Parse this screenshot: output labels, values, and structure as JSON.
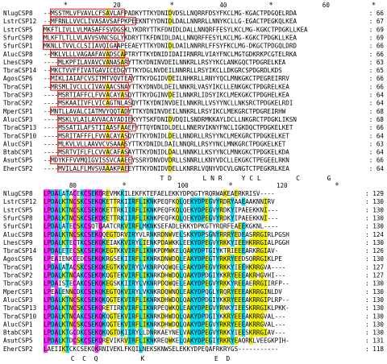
{
  "figure": {
    "blocks": [
      {
        "ruler": [
          "*",
          "20",
          "*",
          "40",
          "*",
          "60",
          "*"
        ],
        "rows": [
          {
            "name": "NlugCSP8",
            "seq": "--MSSTMLVFVAVLCFSAVLAFPADKYTTKYDNIDVDSLLNQRRFDSYFKCLMG-KGACTPDGQELRDA",
            "end": "66"
          },
          {
            "name": "LstrCSP12",
            "seq": "--MFRNLLVVCLIVASAVSAFPKPEEKNTYYDNIDLDALLNNRRLLNNYKCLLG-EGACTPEGKQLKEA",
            "end": "67"
          },
          {
            "name": "LstrCSP5",
            "seq": "MKFTLIVLLVLMASAFFSVDGSKLYKDRYTTKFDNIDLDALLNNQRFFESYLKCLMG-KGKCTPDGKLLKEA",
            "end": "69"
          },
          {
            "name": "SfurCSP8",
            "seq": "MLKFTLTLLVLAVVSVNCSGLYKDRYTTKFDNIDLDALLNNQRFFESYLKCLMG-KGKCTPDGKLLKEA",
            "end": "69"
          },
          {
            "name": "SfurCSP1",
            "seq": "MKNLLTVVLCLSIIAVQIGAAPEEAEYTTKYDNIDLDAILNNRRLFFSYFKCLMG-DKGCTPDGQLDRD",
            "end": "66"
          },
          {
            "name": "AlucCSP8",
            "seq": "--MKLVLLLVAGAAFAVADSCAPTRYTTKYDNIDIDAIIRNRRLVIAYFNCLMGTGDKRKPCGTELRKA",
            "end": "66"
          },
          {
            "name": "LhesCSP9",
            "seq": "----MLKPFILAVAVCVANASARYTTKYDNINVDEILNNKRLLRSYYKCLANKGQCTPDGRELKEA",
            "end": "63"
          },
          {
            "name": "TbraCSP14",
            "seq": "--MKCTVVFFIVATGAVICEDGYTTKYDGLNVDEILNNRRLLRSYIKCLLDKGRCSPDGRDLKDS",
            "end": "65"
          },
          {
            "name": "AgosCSP6",
            "seq": "--MIKLIAIAFCVSITMTVQVTEAYTTKYDGIDVDEILNHKRLLRNYYQCLMNKGKCTPEGREIRRV",
            "end": "66"
          },
          {
            "name": "TbraCSP1",
            "seq": "--MRSMLIVCLLCIVAVAACSNAYTTKYDNVDLDEILNNKRLVASYIKCLLENKGKCTPDGRELKEA",
            "end": "66"
          },
          {
            "name": "TbraCSP3",
            "seq": "----MSRTIAFFCLFVVACAYASQYTTKYDGINVDEILNNKRLIDSYIKCLMEKGKCTPDGHELKEA",
            "end": "64"
          },
          {
            "name": "TbraCSP2",
            "seq": "----MSKAAIIVFLVICAGTNLASQYTTKYDNINVDEILNNKRLLVSYYNCLLNKSRCTPDGKELRDI",
            "end": "64"
          },
          {
            "name": "MperCSP1",
            "seq": "--MNTLLAVALCIATMVYQQTADYTTKYDNINVDEILNNKRLLRSYIKCLMEKGRCTPDGREIRHW",
            "end": "68"
          },
          {
            "name": "AlucCSP3",
            "seq": "----MSKLVLAILAVVACAYADIEKYYTSKFDNIDVDQILSNDRMKKAYLDCLLNKGRCTPDGKLIKSN",
            "end": "68"
          },
          {
            "name": "TbraCSP13",
            "seq": "----MSSATILAFSTIIAASFAAEFYTTQYDNIDLDELLNNERVIKNYFNCLIGKDQCTPDGKELKET",
            "end": "66"
          },
          {
            "name": "TbraCSP10",
            "seq": "----MSRITAFFFLFVVACAYASQYTTKYDNIDLDELLNNDRLLRSYYNCLMEKGRCTPDGKELKET",
            "end": "64"
          },
          {
            "name": "AlucCSP1",
            "seq": "----MLKVLVLLAAVVCVSAAASYTTKYDNIDLDAILNNQRLLRSYYNCLMNKGRCTPDGKELKET",
            "end": "63"
          },
          {
            "name": "BtabCSP1",
            "seq": "----MSRTVIFLFLCVVACAFASAYTTKYDNIDLDALLNNNKLLKSYYNCLMNKGKCTPDGKELKDA",
            "end": "64"
          },
          {
            "name": "AsutCSP5",
            "seq": "--MDYKFFVVMQIGVISSVCAAEEYSSRYDNVDVDRLLSNNRLLKNYVDCLLEKGKCTPEGEELRKN",
            "end": "66"
          },
          {
            "name": "EherCSP2",
            "seq": "----MVILALFLMVSVAAAKPAEEYTTKYDNIDVDELLKNRRLVQNYVDCVLGNGTCTPEGKRLKEA",
            "end": "64"
          }
        ],
        "consensus": "                              T D        L N R     Y C L         C       G      "
      },
      {
        "ruler": [
          "80",
          "*",
          "100",
          "*",
          "120",
          "*"
        ],
        "rows": [
          {
            "name": "NlugCSP8",
            "seq": "LPDALATACEKCSEKQREVMKKILEKFKTEFAELEKKYDPQGTYRQRWAKEAERKRISV----",
            "end": "129"
          },
          {
            "name": "LstrCSP12",
            "seq": "LPDALKTNCSKCSEKQKETTRKIIRFLIKNKPEQFKQLQEKYDPEGVYRDRYAAEAAKNNIRV",
            "end": "130"
          },
          {
            "name": "LstrCSP5",
            "seq": "LPDALKTNCSKCSEKQKETTRKIIRFLIKNKPEQFKQLQEKYDPEGVYRDKYIPAEEKKNI---",
            "end": "130"
          },
          {
            "name": "SfurCSP8",
            "seq": "LPDALKTNCSKCSEKQKETTRKIIRFLIKNKPEQFKQLQEKYDPEGVYRDKYIPAEEKKNI---",
            "end": "130"
          },
          {
            "name": "SfurCSP1",
            "seq": "LPDALATECSKCSQTQAATCRKVIRFLMKNKSEFADLEKKYDPKGTYRQRFEAEEKGKNL----",
            "end": "130"
          },
          {
            "name": "AlucCSP8",
            "seq": "LPDALKTNCSKCSEKQQEGTDRVIRYVLRNKRDNWVELSKKYDPSGNYRRRYEDEASRRGIRLPGSH",
            "end": "124"
          },
          {
            "name": "LhesCSP9",
            "seq": "LPDALKTECTKCSEKQKEIAKKVIRYLIENKPDAWKKLEEKYDPEGVYRKKYIEEHKRRGIALPGGH",
            "end": "130"
          },
          {
            "name": "TbraCSP14",
            "seq": "LPDALETECSKCSEKQKEGTKKVIRFLIKNKPDMWKELQAKYDPTGIYKTRIEEEARKRGIAV-",
            "end": "126"
          },
          {
            "name": "AgosCSP6",
            "seq": "LPEAIENKCEDCSEKQKRGSEKIIRFLIKNRKDNWDQLEAKYDPEGTYRKRYEEDSQRRGIKLPE",
            "end": "130"
          },
          {
            "name": "TbraCSP1",
            "seq": "LPDALATACSKCSEKQKEGTKKVIRYLVKNRPQQWQELEAKYDPEGVYRKKYIEEHKRRGVA----",
            "end": "127"
          },
          {
            "name": "TbraCSP2",
            "seq": "LPDALKTNCAKCSEKQKQGTEKVIRFLIKNRKDHWDQLQAKYDPDGIYKKRYEEEAKRHGVHI---",
            "end": "127"
          },
          {
            "name": "TbraCSP3",
            "seq": "LPDAISTECAKCSEKQKEGSKKIIRYLVKNRPDQWQELEAKYDPEGVYRKKYREEAERRGIIRFP--",
            "end": "130"
          },
          {
            "name": "MperCSP1",
            "seq": "LPEALENNCDKCSEKQKEGTQKVIRYLVKNKRDQWNQLEAKYDPQGLYRQRYEEEAKRRGINLDV",
            "end": "130"
          },
          {
            "name": "AlucCSP3",
            "seq": "LPDALKTNCSKCSEKQKQGTEKVIRFLIKNRKDHWDQLQAKYDPDGIYKKRYEEEAKRRGIPLRP--",
            "end": "130"
          },
          {
            "name": "TbraCSP13",
            "seq": "LPDALKTNCSKCSEKQRETIRKVIRFLIKNRPEQWKQLEAKYDPEGVYRNKYIEESKRRGIKLPKK-",
            "end": "130"
          },
          {
            "name": "TbraCSP10",
            "seq": "LPDALKTNCAKCSEKQKQGTEKVIRFLIKNRKDHWDQLQAKYDPDGIYKKRYEEEAKRRGVAL---",
            "end": "130"
          },
          {
            "name": "AlucCSP1",
            "seq": "LPDALKTNCSKCSEKQKQGTEKVIRFLIKNRKDHWDQLQAKYDPEGVYRKRYEEEAKRRGVAL---",
            "end": "130"
          },
          {
            "name": "BtabCSP1",
            "seq": "LPDALKTGCDKCSEKQKQGTDKIIRYLLDNRKAEYNELVAKYDPEGVYRKKYIEESKRRGIAV---",
            "end": "130"
          },
          {
            "name": "AsutCSP5",
            "seq": "LPDALKTDCSKCSEKQREVIKRVIRFLIKNKREQWKELQAKYDPEGIYRKRYEAQRKLVEEGKPIH-",
            "end": "131"
          },
          {
            "name": "EherCSP2",
            "seq": "LAEIIKTCKCSEKQKRNIVEKLFKQILNEKSKNWSELEKKYDPEQAFRKRYGS-----------",
            "end": "118"
          }
        ],
        "consensus": "       C  C  Q           K                  E  D                  "
      }
    ]
  }
}
